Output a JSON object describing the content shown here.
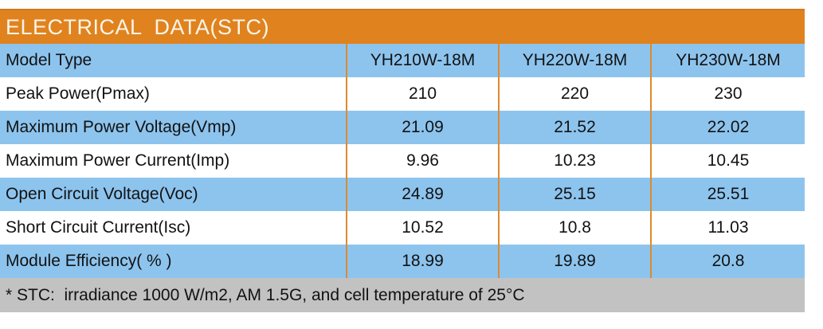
{
  "title": "ELECTRICAL  DATA(STC)",
  "table": {
    "header_label": "Model Type",
    "columns": [
      "YH210W-18M",
      "YH220W-18M",
      "YH230W-18M"
    ],
    "rows": [
      {
        "label": "Peak Power(Pmax)",
        "values": [
          "210",
          "220",
          "230"
        ]
      },
      {
        "label": "Maximum Power Voltage(Vmp)",
        "values": [
          "21.09",
          "21.52",
          "22.02"
        ]
      },
      {
        "label": "Maximum Power Current(Imp)",
        "values": [
          "9.96",
          "10.23",
          "10.45"
        ]
      },
      {
        "label": "Open Circuit Voltage(Voc)",
        "values": [
          "24.89",
          "25.15",
          "25.51"
        ]
      },
      {
        "label": "Short Circuit Current(Isc)",
        "values": [
          "10.52",
          "10.8",
          "11.03"
        ]
      },
      {
        "label": "Module Efficiency( % )",
        "values": [
          "18.99",
          "19.89",
          "20.8"
        ]
      }
    ]
  },
  "footnote": "* STC:  irradiance 1000 W/m2, AM 1.5G, and cell temperature of 25°C",
  "colors": {
    "orange": "#E0831E",
    "blue": "#8DC4EE",
    "gray": "#C2C2C2",
    "divider": "#DD8A2D",
    "text": "#121212",
    "title_text": "#FBF5EA"
  }
}
